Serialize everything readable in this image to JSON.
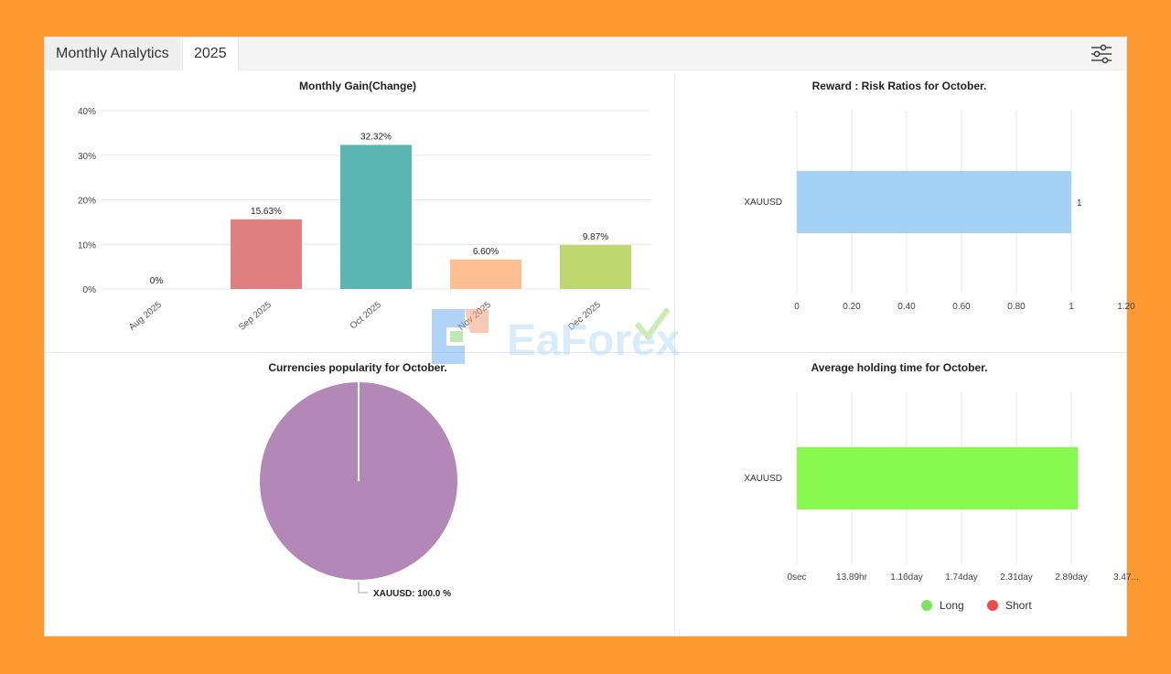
{
  "header": {
    "title": "Monthly Analytics",
    "year_tab": "2025",
    "settings_icon": "sliders-icon"
  },
  "watermark": {
    "text": "EaForex"
  },
  "charts": {
    "monthly_gain": {
      "title": "Monthly Gain(Change)"
    },
    "reward_risk": {
      "title": "Reward : Risk Ratios for October."
    },
    "currencies": {
      "title": "Currencies popularity for October."
    },
    "holding": {
      "title": "Average holding time for October."
    }
  },
  "chart_data": [
    {
      "id": "monthly_gain",
      "type": "bar",
      "title": "Monthly Gain(Change)",
      "categories": [
        "Aug 2025",
        "Sep 2025",
        "Oct 2025",
        "Nov 2025",
        "Dec 2025"
      ],
      "values": [
        0,
        15.63,
        32.32,
        6.6,
        9.87
      ],
      "value_labels": [
        "0%",
        "15.63%",
        "32.32%",
        "6.60%",
        "9.87%"
      ],
      "colors": [
        "#E08080",
        "#E08080",
        "#5BB5B0",
        "#FFBF91",
        "#BDD66E"
      ],
      "yticks": [
        "0%",
        "10%",
        "20%",
        "30%",
        "40%"
      ],
      "ylim": [
        0,
        40
      ],
      "grid": true
    },
    {
      "id": "reward_risk",
      "type": "bar",
      "orientation": "horizontal",
      "title": "Reward : Risk Ratios for October.",
      "categories": [
        "XAUUSD"
      ],
      "values": [
        1
      ],
      "value_labels": [
        "1"
      ],
      "color": "#A3D2F5",
      "xticks": [
        "0",
        "0.20",
        "0.40",
        "0.60",
        "0.80",
        "1",
        "1.20"
      ],
      "xlim": [
        0,
        1.2
      ],
      "grid": true
    },
    {
      "id": "currencies",
      "type": "pie",
      "title": "Currencies popularity for October.",
      "labels": [
        "XAUUSD"
      ],
      "values": [
        100.0
      ],
      "slice_label": "XAUUSD: 100.0 %",
      "color": "#B388B8"
    },
    {
      "id": "holding",
      "type": "bar",
      "orientation": "horizontal",
      "title": "Average holding time for October.",
      "categories": [
        "XAUUSD"
      ],
      "values": [
        2.96
      ],
      "value_unit": "day",
      "color": "#86F84E",
      "xticks": [
        "0sec",
        "13.89hr",
        "1.16day",
        "1.74day",
        "2.31day",
        "2.89day",
        "3.47..."
      ],
      "xlim": [
        0,
        3.47
      ],
      "legend": [
        {
          "name": "Long",
          "color": "#7EE35A"
        },
        {
          "name": "Short",
          "color": "#F24A4A"
        }
      ],
      "legend_position": "bottom",
      "grid": true
    }
  ]
}
